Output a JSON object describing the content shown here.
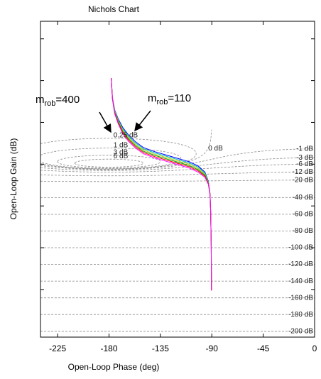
{
  "chart_data": {
    "type": "line",
    "title": "Nichols Chart",
    "x_label": "Open-Loop Phase (deg)",
    "y_label": "Open-Loop Gain (dB)",
    "xlim": [
      -240,
      0
    ],
    "xticks": [
      -225,
      -180,
      -135,
      -90,
      -45,
      0
    ],
    "ylim": [
      -207,
      171
    ],
    "yticks": [
      -150,
      -100,
      -50,
      0,
      50,
      100,
      150
    ],
    "x": [
      -178,
      -177,
      -175,
      -172,
      -168,
      -163,
      -157,
      -150,
      -140,
      -130,
      -120,
      -110,
      -102,
      -96,
      -93,
      -91.5,
      -91,
      -90.5,
      -90.3
    ],
    "series": [
      {
        "color": "#0000ff",
        "values": [
          103,
          79.9,
          64.8,
          54.4,
          44,
          35,
          27,
          20,
          15,
          11,
          7,
          3,
          -2,
          -9.6,
          -20.5,
          -35.4,
          -56,
          -95,
          -151
        ]
      },
      {
        "color": "#00c0c0",
        "values": [
          103,
          79.5,
          63.9,
          53.2,
          42.5,
          33.5,
          25.5,
          18.5,
          13.5,
          9.5,
          5.5,
          1.5,
          -3.5,
          -10.8,
          -21.3,
          -35.7,
          -56,
          -95,
          -151
        ]
      },
      {
        "color": "#c8c800",
        "values": [
          103,
          79,
          63,
          52,
          41,
          32,
          24,
          17,
          12,
          8,
          4,
          0,
          -5,
          -12,
          -22,
          -36,
          -56,
          -95,
          -151
        ]
      },
      {
        "color": "#00a000",
        "values": [
          103,
          78.6,
          62.1,
          50.8,
          39.5,
          30.5,
          22.5,
          15.5,
          10.5,
          6.5,
          2.5,
          -1.5,
          -6.5,
          -13.2,
          -22.8,
          -36.3,
          -56,
          -95,
          -151
        ]
      },
      {
        "color": "#ff0000",
        "values": [
          103,
          78.1,
          61.2,
          49.6,
          38,
          29,
          21,
          14,
          9,
          5,
          1,
          -3,
          -8,
          -14.4,
          -23.5,
          -36.6,
          -56,
          -95,
          -151
        ]
      },
      {
        "color": "#ff00ff",
        "values": [
          103,
          77.7,
          60.3,
          48.4,
          36.5,
          27.5,
          19.5,
          12.5,
          7.5,
          3.5,
          -0.5,
          -4.5,
          -9.5,
          -15.6,
          -24.3,
          -36.9,
          -56,
          -95,
          -151
        ]
      }
    ],
    "annotations": [
      {
        "text": "m",
        "sub": "rob",
        "suffix": "=400"
      },
      {
        "text": "m",
        "sub": "rob",
        "suffix": "=110"
      }
    ],
    "grid_contours": [
      {
        "value": 0.25,
        "label": "0.25 dB"
      },
      {
        "value": 0,
        "label": "0 dB"
      },
      {
        "value": 1,
        "label": "1 dB"
      },
      {
        "value": 3,
        "label": "3 dB"
      },
      {
        "value": 6,
        "label": "6 dB"
      },
      {
        "value": -1,
        "label": "-1 dB"
      },
      {
        "value": -3,
        "label": "-3 dB"
      },
      {
        "value": -6,
        "label": "-6 dB"
      },
      {
        "value": -12,
        "label": "-12 dB"
      },
      {
        "value": -20,
        "label": "-20 dB"
      },
      {
        "value": -40,
        "label": "-40 dB"
      },
      {
        "value": -60,
        "label": "-60 dB"
      },
      {
        "value": -80,
        "label": "-80 dB"
      },
      {
        "value": -100,
        "label": "-100 dB"
      },
      {
        "value": -120,
        "label": "-120 dB"
      },
      {
        "value": -140,
        "label": "-140 dB"
      },
      {
        "value": -160,
        "label": "-160 dB"
      },
      {
        "value": -180,
        "label": "-180 dB"
      },
      {
        "value": -200,
        "label": "-200 dB"
      }
    ]
  }
}
